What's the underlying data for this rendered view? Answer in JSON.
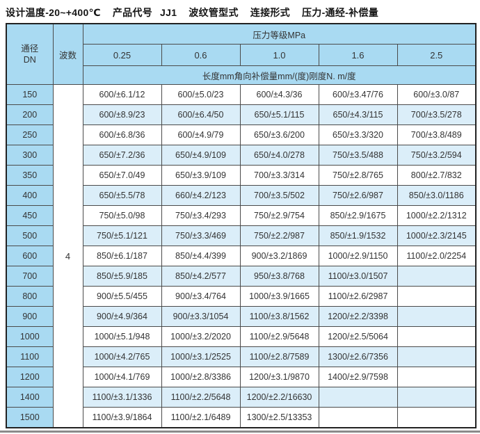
{
  "title": {
    "design_temp": "设计温度-20~+400℃",
    "product_code_label": "产品代号",
    "product_code_value": "JJ1",
    "bellows_type": "波纹管型式",
    "connection_type": "连接形式",
    "ordering_rule": "压力-通经-补偿量"
  },
  "colors": {
    "header_blue": "#a9daf2",
    "row_alt_blue": "#dbeef9",
    "row_white": "#ffffff",
    "grid_line": "#4a4a4a",
    "outer_border": "#222222",
    "text": "#333333",
    "bottom_rule": "#8a8a8a"
  },
  "table": {
    "dn_header_line1": "通径",
    "dn_header_line2": "DN",
    "wave_header": "波数",
    "pressure_group_header": "压力等级MPa",
    "pressure_levels": [
      "0.25",
      "0.6",
      "1.0",
      "1.6",
      "2.5"
    ],
    "unit_header": "长度mm角向补偿量mm/(度)刚度N. m/度",
    "wave_count": "4",
    "rows": [
      {
        "dn": "150",
        "values": [
          "600/±6.1/12",
          "600/±5.0/23",
          "600/±4.3/36",
          "600/±3.47/76",
          "600/±3.0/87"
        ]
      },
      {
        "dn": "200",
        "values": [
          "600/±8.9/23",
          "600/±6.4/50",
          "650/±5.1/115",
          "650/±4.3/115",
          "700/±3.5/278"
        ]
      },
      {
        "dn": "250",
        "values": [
          "600/±6.8/36",
          "600/±4.9/79",
          "650/±3.6/200",
          "650/±3.3/320",
          "700/±3.8/489"
        ]
      },
      {
        "dn": "300",
        "values": [
          "650/±7.2/36",
          "650/±4.9/109",
          "650/±4.0/278",
          "750/±3.5/488",
          "750/±3.2/594"
        ]
      },
      {
        "dn": "350",
        "values": [
          "650/±7.0/49",
          "650/±3.9/109",
          "700/±3.3/314",
          "750/±2.8/765",
          "800/±2.7/832"
        ]
      },
      {
        "dn": "400",
        "values": [
          "650/±5.5/78",
          "660/±4.2/123",
          "700/±3.5/502",
          "750/±2.6/987",
          "850/±3.0/1186"
        ]
      },
      {
        "dn": "450",
        "values": [
          "750/±5.0/98",
          "750/±3.4/293",
          "750/±2.9/754",
          "850/±2.9/1675",
          "1000/±2.2/1312"
        ]
      },
      {
        "dn": "500",
        "values": [
          "750/±5.1/121",
          "750/±3.3/469",
          "750/±2.2/987",
          "850/±1.9/1532",
          "1000/±2.3/2145"
        ]
      },
      {
        "dn": "600",
        "values": [
          "850/±6.1/187",
          "850/±4.4/399",
          "900/±3.2/1869",
          "1000/±2.9/1150",
          "1100/±2.0/2254"
        ]
      },
      {
        "dn": "700",
        "values": [
          "850/±5.9/185",
          "850/±4.2/577",
          "950/±3.8/768",
          "1100/±3.0/1507",
          ""
        ]
      },
      {
        "dn": "800",
        "values": [
          "900/±5.5/455",
          "900/±3.4/764",
          "1000/±3.9/1665",
          "1100/±2.6/2987",
          ""
        ]
      },
      {
        "dn": "900",
        "values": [
          "900/±4.9/364",
          "900/±3.3/1054",
          "1100/±3.8/1562",
          "1200/±2.2/3398",
          ""
        ]
      },
      {
        "dn": "1000",
        "values": [
          "1000/±5.1/948",
          "1000/±3.2/2020",
          "1100/±2.9/5648",
          "1200/±2.5/5064",
          ""
        ]
      },
      {
        "dn": "1100",
        "values": [
          "1000/±4.2/765",
          "1000/±3.1/2525",
          "1100/±2.8/7589",
          "1300/±2.6/7356",
          ""
        ]
      },
      {
        "dn": "1200",
        "values": [
          "1000/±4.1/769",
          "1000/±2.8/3386",
          "1200/±3.1/9870",
          "1400/±2.9/7598",
          ""
        ]
      },
      {
        "dn": "1400",
        "values": [
          "1100/±3.1/1336",
          "1100/±2.2/5648",
          "1200/±2.2/16630",
          "",
          ""
        ]
      },
      {
        "dn": "1500",
        "values": [
          "1100/±3.9/1864",
          "1100/±2.1/6489",
          "1300/±2.5/13353",
          "",
          ""
        ]
      }
    ]
  }
}
